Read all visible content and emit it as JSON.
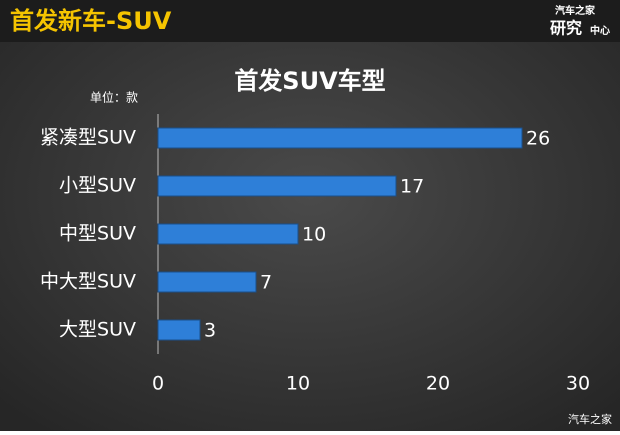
{
  "header": {
    "title": "首发新车-SUV",
    "logo_top": "汽车之家",
    "logo_main": "研究",
    "logo_sub": "中心"
  },
  "watermark": "汽车之家",
  "chart_data": {
    "type": "bar",
    "orientation": "horizontal",
    "title": "首发SUV车型",
    "unit_label": "单位：款",
    "categories": [
      "紧凑型SUV",
      "小型SUV",
      "中型SUV",
      "中大型SUV",
      "大型SUV"
    ],
    "values": [
      26,
      17,
      10,
      7,
      3
    ],
    "color": "#2e7fd8",
    "xlim": [
      0,
      30
    ],
    "xticks": [
      0,
      10,
      20,
      30
    ]
  }
}
